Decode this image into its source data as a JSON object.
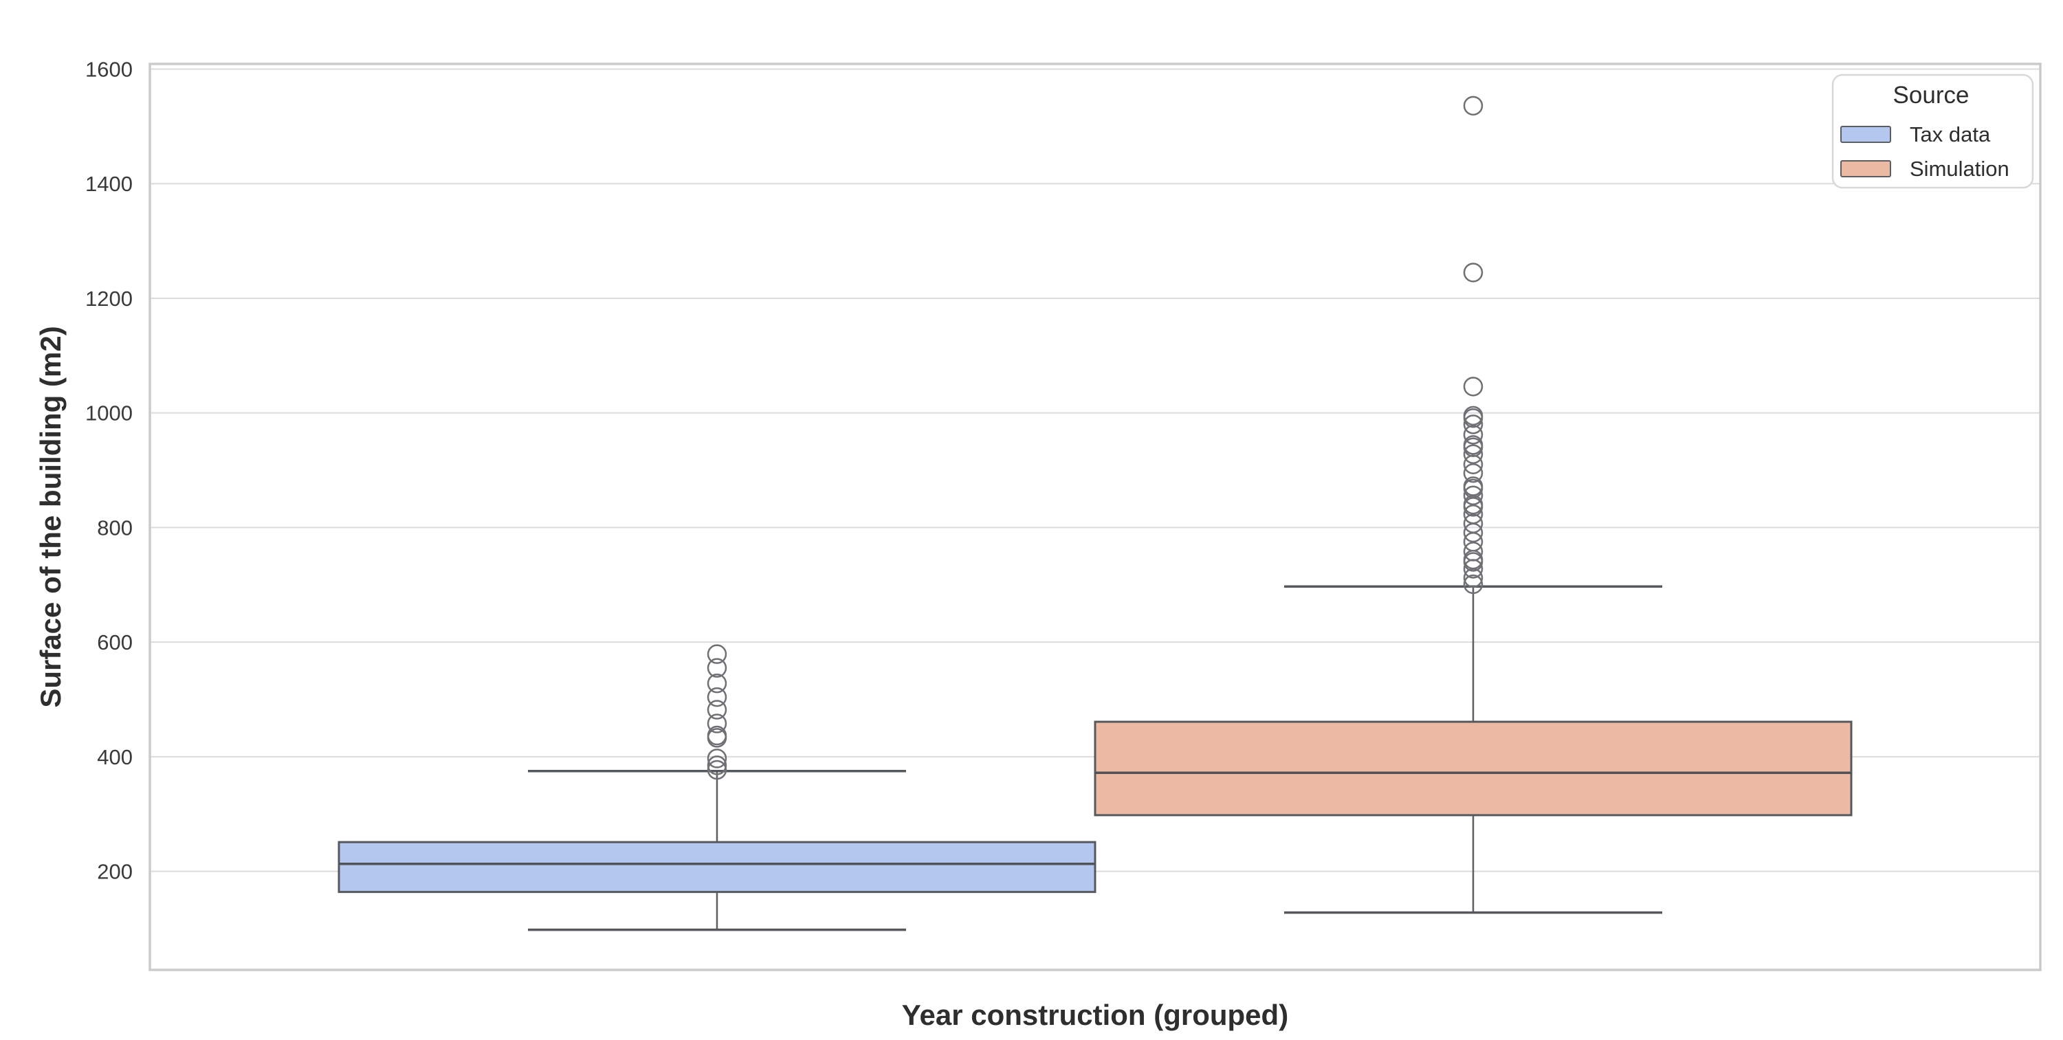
{
  "chart_data": {
    "type": "box",
    "title": "",
    "xlabel": "Year construction (grouped)",
    "ylabel": "Surface of the building (m2)",
    "categories": [
      ""
    ],
    "yticks": [
      "200",
      "400",
      "600",
      "800",
      "1000",
      "1200",
      "1400",
      "1600"
    ],
    "ylim": [
      28,
      1609
    ],
    "grid": true,
    "legend_position": "upper right",
    "series": [
      {
        "name": "Tax data",
        "color": "#b4c7ee",
        "q1": 164,
        "median": 213,
        "q3": 251,
        "whisker_low": 98,
        "whisker_high": 375,
        "outliers": [
          579,
          555,
          528,
          504,
          482,
          458,
          437,
          433,
          397,
          385,
          377
        ]
      },
      {
        "name": "Simulation",
        "color": "#ecbaa3",
        "q1": 298,
        "median": 372,
        "q3": 461,
        "whisker_low": 128,
        "whisker_high": 697,
        "outliers": [
          1536,
          1245,
          1046,
          995,
          991,
          980,
          962,
          944,
          940,
          928,
          910,
          895,
          872,
          868,
          856,
          840,
          836,
          823,
          807,
          791,
          775,
          758,
          744,
          740,
          728,
          712,
          701
        ]
      }
    ]
  },
  "legend": {
    "title": "Source",
    "items": [
      {
        "label": "Tax data",
        "color": "#b4c7ee"
      },
      {
        "label": "Simulation",
        "color": "#ecbaa3"
      }
    ]
  }
}
